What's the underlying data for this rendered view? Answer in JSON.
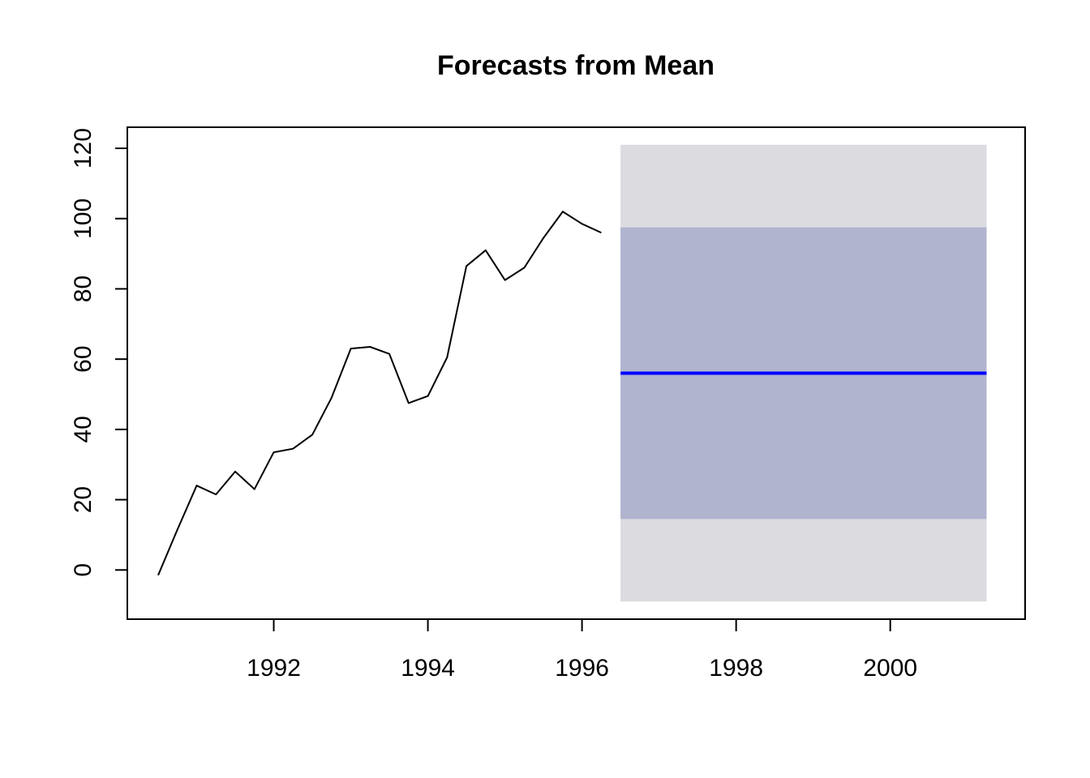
{
  "chart_data": {
    "type": "line",
    "title": "Forecasts from Mean",
    "xlabel": "",
    "ylabel": "",
    "xlim": [
      1990.1,
      2001.75
    ],
    "ylim": [
      -14,
      126
    ],
    "x_ticks": [
      1992,
      1994,
      1996,
      1998,
      2000
    ],
    "y_ticks": [
      0,
      20,
      40,
      60,
      80,
      100,
      120
    ],
    "grid": false,
    "legend": "none",
    "series": [
      {
        "x": [
          1990.5,
          1990.75,
          1991.0,
          1991.25,
          1991.5,
          1991.75,
          1992.0,
          1992.25,
          1992.5,
          1992.75,
          1993.0,
          1993.25,
          1993.5,
          1993.75,
          1994.0,
          1994.25,
          1994.5,
          1994.75,
          1995.0,
          1995.25,
          1995.5,
          1995.75,
          1996.0,
          1996.25
        ],
        "values": [
          -1.5,
          11.5,
          24.0,
          21.5,
          28.0,
          23.0,
          33.5,
          34.5,
          38.5,
          49.0,
          63.0,
          63.5,
          61.5,
          47.5,
          49.5,
          60.5,
          86.5,
          91.0,
          82.5,
          86.0,
          94.5,
          102.0,
          98.5,
          96.0
        ]
      }
    ],
    "forecast": {
      "x_start": 1996.5,
      "x_end": 2001.25,
      "mean": 56.0,
      "interval_80": [
        14.5,
        97.5
      ],
      "interval_95": [
        -9.0,
        121.0
      ]
    },
    "colors": {
      "data_line": "#000000",
      "mean_line": "#0000ff",
      "band_80": "#b0b4cf",
      "band_95": "#dbdbe0",
      "frame": "#000000"
    }
  }
}
